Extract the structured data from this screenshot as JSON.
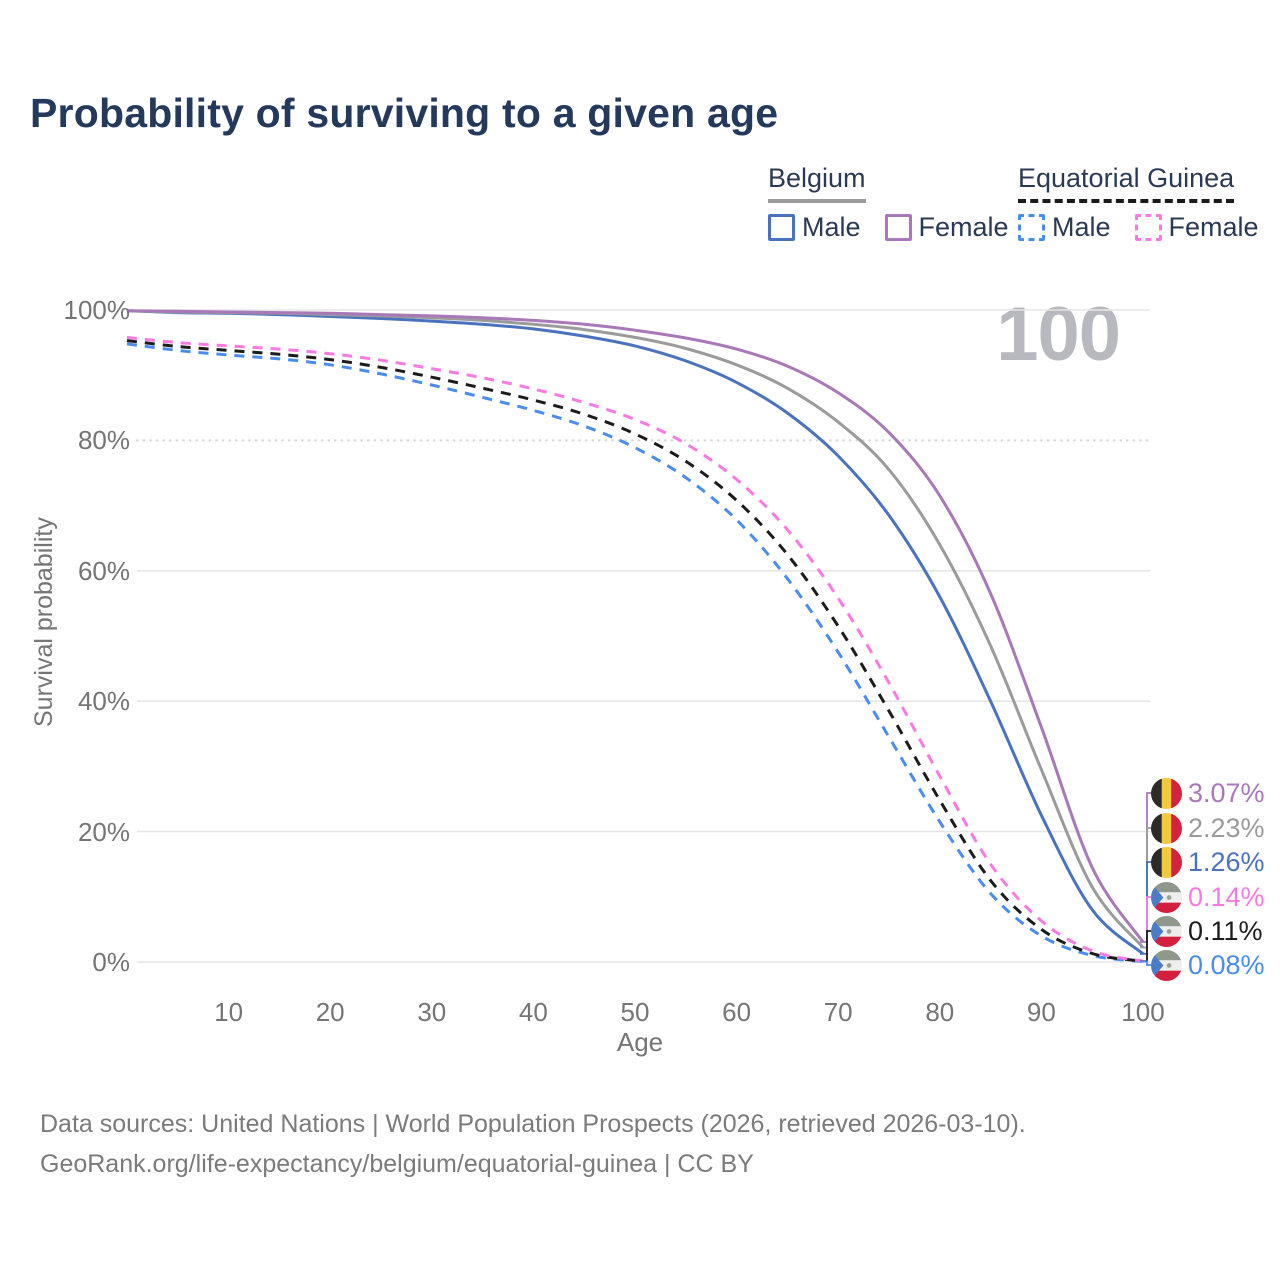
{
  "title": "Probability of surviving to a given age",
  "age_indicator": "100",
  "legend": {
    "belgium": {
      "label": "Belgium",
      "male": "Male",
      "female": "Female"
    },
    "equatorial_guinea": {
      "label": "Equatorial Guinea",
      "male": "Male",
      "female": "Female"
    }
  },
  "y_axis": {
    "title": "Survival probability",
    "ticks": [
      "100%",
      "80%",
      "60%",
      "40%",
      "20%",
      "0%"
    ]
  },
  "x_axis": {
    "title": "Age",
    "ticks": [
      "10",
      "20",
      "30",
      "40",
      "50",
      "60",
      "70",
      "80",
      "90",
      "100"
    ]
  },
  "chart_data": {
    "type": "line",
    "title": "Probability of surviving to a given age",
    "xlabel": "Age",
    "ylabel": "Survival probability",
    "xlim": [
      0,
      100
    ],
    "ylim": [
      0,
      100
    ],
    "grid": true,
    "legend_position": "top-right",
    "x": [
      0,
      5,
      10,
      15,
      20,
      25,
      30,
      35,
      40,
      45,
      50,
      55,
      60,
      65,
      70,
      75,
      80,
      85,
      90,
      95,
      100
    ],
    "series": [
      {
        "key": "belgium-male",
        "name": "Belgium Male",
        "color": "#4a72be",
        "dashed": false,
        "flag": "belgium",
        "end_label": "1.26%",
        "values": [
          99.9,
          99.6,
          99.5,
          99.3,
          99.0,
          98.7,
          98.3,
          97.8,
          97.1,
          96.0,
          94.5,
          92.2,
          88.9,
          84.2,
          77.6,
          68.5,
          56.0,
          40.0,
          22.5,
          8.0,
          1.26
        ]
      },
      {
        "key": "belgium-total",
        "name": "Belgium (both sexes)",
        "color": "#9b9b9b",
        "dashed": false,
        "flag": "belgium",
        "end_label": "2.23%",
        "values": [
          99.9,
          99.7,
          99.6,
          99.5,
          99.3,
          99.1,
          98.8,
          98.4,
          97.8,
          97.0,
          95.8,
          94.1,
          91.6,
          88.0,
          82.8,
          75.5,
          64.0,
          48.5,
          29.5,
          11.5,
          2.23
        ]
      },
      {
        "key": "belgium-female",
        "name": "Belgium Female",
        "color": "#a878b8",
        "dashed": false,
        "flag": "belgium",
        "end_label": "3.07%",
        "values": [
          99.9,
          99.8,
          99.7,
          99.6,
          99.5,
          99.3,
          99.1,
          98.8,
          98.4,
          97.8,
          96.9,
          95.7,
          94.0,
          91.4,
          87.3,
          81.2,
          71.5,
          56.5,
          36.0,
          14.5,
          3.07
        ]
      },
      {
        "key": "eq-male",
        "name": "Equatorial Guinea Male",
        "color": "#4a8cf0",
        "dashed": true,
        "flag": "equatorial-guinea",
        "end_label": "0.08%",
        "values": [
          94.8,
          93.8,
          93.1,
          92.5,
          91.6,
          90.2,
          88.5,
          86.6,
          84.6,
          82.2,
          78.9,
          74.3,
          67.8,
          58.8,
          47.5,
          34.5,
          21.5,
          10.5,
          4.0,
          1.0,
          0.08
        ]
      },
      {
        "key": "eq-total",
        "name": "Equatorial Guinea (both sexes)",
        "color": "#1c1c1c",
        "dashed": true,
        "flag": "equatorial-guinea",
        "end_label": "0.11%",
        "values": [
          95.3,
          94.4,
          93.8,
          93.2,
          92.4,
          91.2,
          89.7,
          88.0,
          86.2,
          84.0,
          81.0,
          76.8,
          70.8,
          62.5,
          51.5,
          38.5,
          24.8,
          12.5,
          5.0,
          1.3,
          0.11
        ]
      },
      {
        "key": "eq-female",
        "name": "Equatorial Guinea Female",
        "color": "#fb7ae2",
        "dashed": true,
        "flag": "equatorial-guinea",
        "end_label": "0.14%",
        "values": [
          95.8,
          95.0,
          94.5,
          94.0,
          93.3,
          92.3,
          91.0,
          89.6,
          87.9,
          85.8,
          83.2,
          79.5,
          74.0,
          66.3,
          55.8,
          42.8,
          28.5,
          15.0,
          6.3,
          1.7,
          0.14
        ]
      }
    ]
  },
  "end_labels": [
    {
      "series": "belgium-female",
      "value": "3.07%",
      "color": "#a878b8",
      "flag": "belgium"
    },
    {
      "series": "belgium-total",
      "value": "2.23%",
      "color": "#9b9b9b",
      "flag": "belgium"
    },
    {
      "series": "belgium-male",
      "value": "1.26%",
      "color": "#4a72be",
      "flag": "belgium"
    },
    {
      "series": "eq-female",
      "value": "0.14%",
      "color": "#fb7ae2",
      "flag": "equatorial-guinea"
    },
    {
      "series": "eq-total",
      "value": "0.11%",
      "color": "#1c1c1c",
      "flag": "equatorial-guinea"
    },
    {
      "series": "eq-male",
      "value": "0.08%",
      "color": "#4a8cf0",
      "flag": "equatorial-guinea"
    }
  ],
  "footer": {
    "line1": "Data sources: United Nations | World Population Prospects (2026, retrieved 2026-03-10).",
    "line2": "GeoRank.org/life-expectancy/belgium/equatorial-guinea | CC BY"
  }
}
